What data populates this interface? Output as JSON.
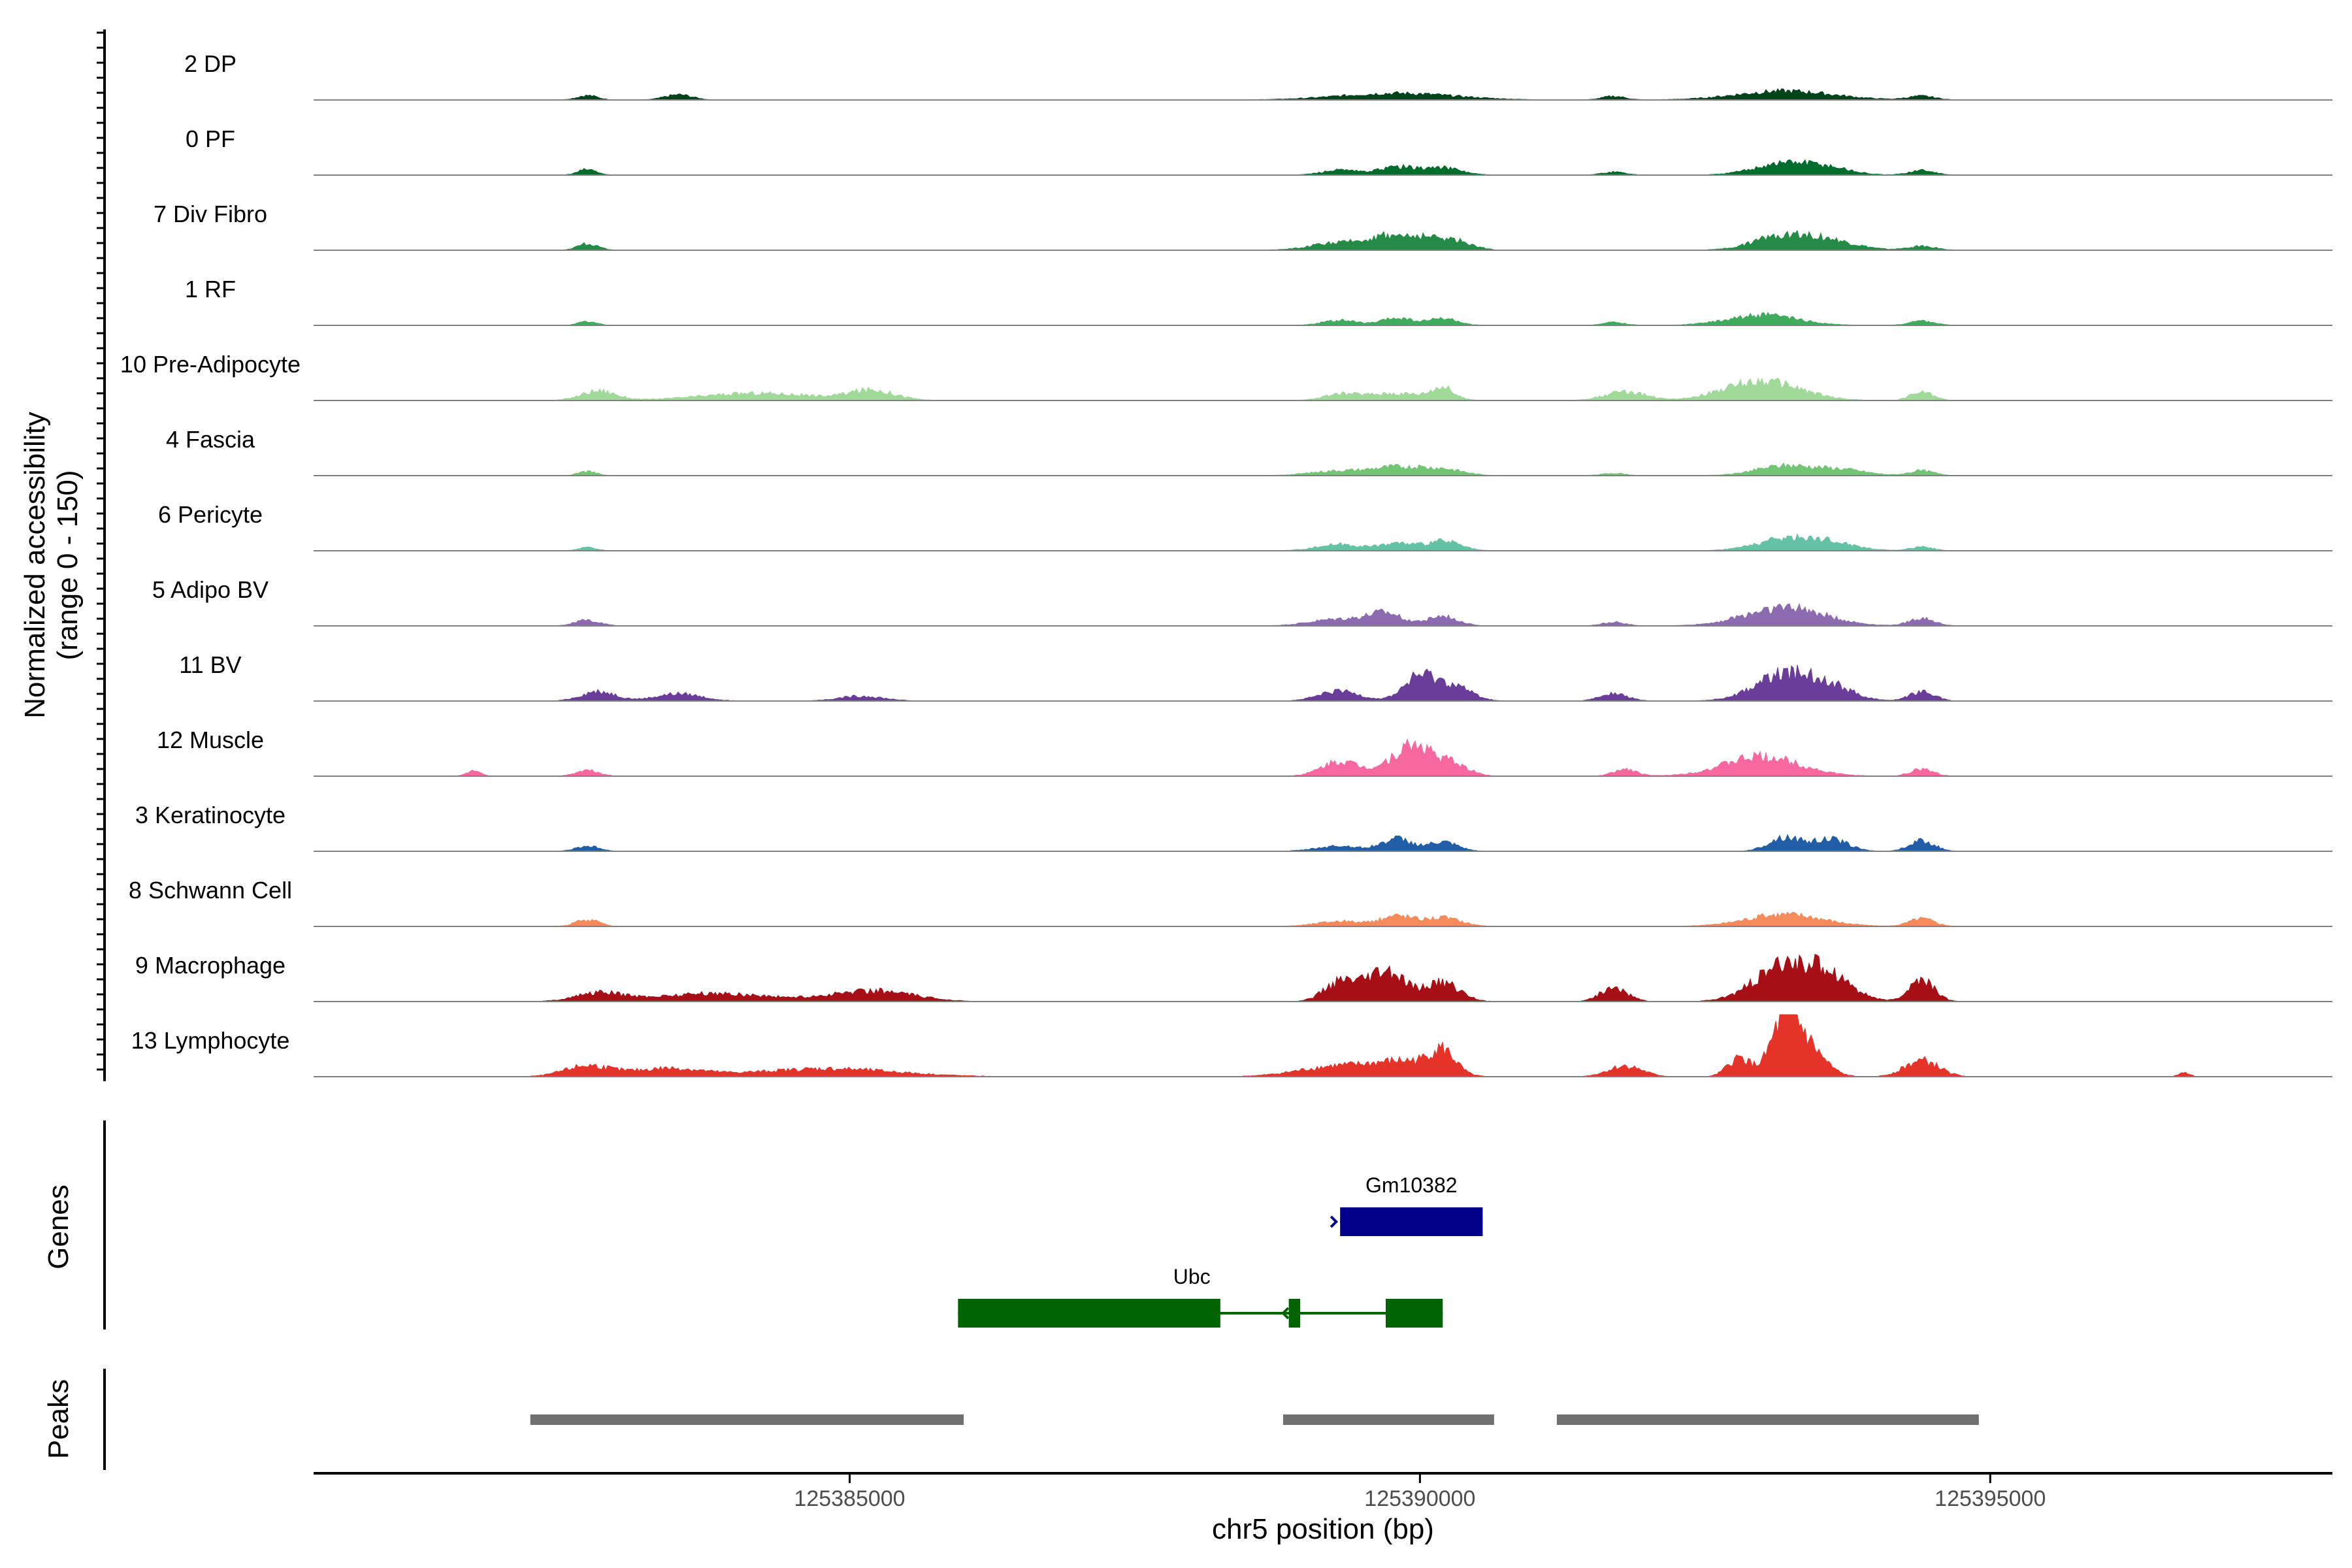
{
  "chart_data": {
    "type": "area",
    "kind": "genome-coverage-track-plot",
    "ylabel_lines": [
      "Normalized accessibility",
      "(range 0 - 150)"
    ],
    "y_range": [
      0,
      150
    ],
    "xlabel": "chr5 position (bp)",
    "x_range": [
      125380300,
      125398000
    ],
    "x_ticks": [
      125385000,
      125390000,
      125395000
    ],
    "x_tick_labels": [
      "125385000",
      "125390000",
      "125395000"
    ],
    "tracks": [
      {
        "name": "2 DP",
        "color": "#00441b",
        "scale": 0.55,
        "peaks": [
          [
            125382700,
            6,
            90
          ],
          [
            125383500,
            7,
            120
          ],
          [
            125389800,
            9,
            500
          ],
          [
            125391700,
            5,
            100
          ],
          [
            125393200,
            12,
            420
          ],
          [
            125394400,
            5,
            120
          ]
        ]
      },
      {
        "name": "0 PF",
        "color": "#006d2c",
        "scale": 0.6,
        "peaks": [
          [
            125382700,
            7,
            80
          ],
          [
            125389300,
            6,
            160
          ],
          [
            125389800,
            10,
            160
          ],
          [
            125390200,
            9,
            160
          ],
          [
            125391700,
            4,
            100
          ],
          [
            125393200,
            15,
            260
          ],
          [
            125393600,
            7,
            200
          ],
          [
            125394400,
            6,
            110
          ]
        ]
      },
      {
        "name": "7 Div Fibro",
        "color": "#238b45",
        "scale": 0.6,
        "peaks": [
          [
            125382700,
            8,
            90
          ],
          [
            125389300,
            9,
            250
          ],
          [
            125389700,
            14,
            160
          ],
          [
            125390000,
            13,
            150
          ],
          [
            125390300,
            12,
            150
          ],
          [
            125393200,
            18,
            260
          ],
          [
            125393600,
            9,
            250
          ],
          [
            125394400,
            5,
            120
          ]
        ]
      },
      {
        "name": "1 RF",
        "color": "#41ab5d",
        "scale": 0.55,
        "peaks": [
          [
            125382700,
            5,
            80
          ],
          [
            125389300,
            7,
            150
          ],
          [
            125389800,
            10,
            130
          ],
          [
            125390200,
            9,
            130
          ],
          [
            125391700,
            4,
            100
          ],
          [
            125393000,
            14,
            300
          ],
          [
            125394400,
            6,
            110
          ]
        ]
      },
      {
        "name": "10 Pre-Adipocyte",
        "color": "#a1d99b",
        "scale": 0.9,
        "peaks": [
          [
            125382800,
            8,
            150
          ],
          [
            125384200,
            6,
            500
          ],
          [
            125385200,
            8,
            200
          ],
          [
            125389300,
            4,
            150
          ],
          [
            125389800,
            6,
            300
          ],
          [
            125390200,
            9,
            90
          ],
          [
            125391800,
            7,
            180
          ],
          [
            125393000,
            16,
            330
          ],
          [
            125394400,
            7,
            100
          ]
        ]
      },
      {
        "name": "4 Fascia",
        "color": "#74c476",
        "scale": 0.6,
        "peaks": [
          [
            125382700,
            5,
            80
          ],
          [
            125389300,
            6,
            250
          ],
          [
            125389800,
            10,
            200
          ],
          [
            125390200,
            8,
            180
          ],
          [
            125391700,
            3,
            100
          ],
          [
            125393200,
            12,
            250
          ],
          [
            125393700,
            7,
            220
          ],
          [
            125394400,
            6,
            110
          ]
        ]
      },
      {
        "name": "6 Pericyte",
        "color": "#66c2a4",
        "scale": 0.6,
        "peaks": [
          [
            125382700,
            4,
            80
          ],
          [
            125389300,
            8,
            200
          ],
          [
            125389800,
            9,
            140
          ],
          [
            125390200,
            12,
            150
          ],
          [
            125393200,
            14,
            260
          ],
          [
            125393600,
            9,
            230
          ],
          [
            125394400,
            5,
            100
          ]
        ]
      },
      {
        "name": "5 Adipo BV",
        "color": "#8c6bb1",
        "scale": 0.7,
        "peaks": [
          [
            125382700,
            6,
            110
          ],
          [
            125389300,
            7,
            250
          ],
          [
            125389700,
            12,
            150
          ],
          [
            125390200,
            10,
            140
          ],
          [
            125391700,
            4,
            100
          ],
          [
            125393200,
            20,
            340
          ],
          [
            125394400,
            8,
            110
          ]
        ]
      },
      {
        "name": "11 BV",
        "color": "#6a3d9a",
        "scale": 0.9,
        "peaks": [
          [
            125382800,
            8,
            150
          ],
          [
            125383500,
            6,
            200
          ],
          [
            125385100,
            4,
            200
          ],
          [
            125389300,
            8,
            180
          ],
          [
            125390000,
            20,
            140
          ],
          [
            125390300,
            12,
            150
          ],
          [
            125391700,
            6,
            120
          ],
          [
            125393200,
            22,
            260
          ],
          [
            125393600,
            10,
            200
          ],
          [
            125394400,
            8,
            110
          ]
        ]
      },
      {
        "name": "12 Muscle",
        "color": "#f768a1",
        "scale": 0.9,
        "peaks": [
          [
            125381700,
            4,
            60
          ],
          [
            125382700,
            5,
            100
          ],
          [
            125389300,
            12,
            160
          ],
          [
            125389800,
            12,
            160
          ],
          [
            125390000,
            19,
            140
          ],
          [
            125390300,
            10,
            130
          ],
          [
            125391800,
            6,
            100
          ],
          [
            125393000,
            16,
            330
          ],
          [
            125394400,
            6,
            100
          ]
        ]
      },
      {
        "name": "3 Keratinocyte",
        "color": "#225ea8",
        "scale": 0.65,
        "peaks": [
          [
            125382700,
            6,
            100
          ],
          [
            125389300,
            6,
            200
          ],
          [
            125389800,
            14,
            130
          ],
          [
            125390200,
            10,
            130
          ],
          [
            125393200,
            16,
            140
          ],
          [
            125393600,
            14,
            150
          ],
          [
            125394400,
            12,
            110
          ]
        ]
      },
      {
        "name": "8 Schwann Cell",
        "color": "#f58b5a",
        "scale": 0.65,
        "peaks": [
          [
            125382700,
            8,
            100
          ],
          [
            125389300,
            6,
            200
          ],
          [
            125389800,
            12,
            140
          ],
          [
            125390200,
            10,
            160
          ],
          [
            125393200,
            14,
            330
          ],
          [
            125394400,
            9,
            110
          ]
        ]
      },
      {
        "name": "9 Macrophage",
        "color": "#a50f15",
        "scale": 1.0,
        "peaks": [
          [
            125382800,
            6,
            200
          ],
          [
            125383800,
            6,
            500
          ],
          [
            125385200,
            8,
            350
          ],
          [
            125389300,
            14,
            140
          ],
          [
            125389700,
            22,
            170
          ],
          [
            125390200,
            14,
            150
          ],
          [
            125391700,
            10,
            120
          ],
          [
            125393200,
            26,
            260
          ],
          [
            125393600,
            16,
            200
          ],
          [
            125394400,
            16,
            110
          ]
        ]
      },
      {
        "name": "13 Lymphocyte",
        "color": "#e6332a",
        "scale": 1.0,
        "peaks": [
          [
            125382700,
            8,
            200
          ],
          [
            125383400,
            6,
            300
          ],
          [
            125384800,
            6,
            600
          ],
          [
            125389300,
            8,
            350
          ],
          [
            125389900,
            10,
            250
          ],
          [
            125390200,
            16,
            110
          ],
          [
            125391800,
            8,
            150
          ],
          [
            125393200,
            40,
            120
          ],
          [
            125393400,
            20,
            150
          ],
          [
            125392800,
            14,
            100
          ],
          [
            125394400,
            12,
            150
          ],
          [
            125396700,
            3,
            50
          ]
        ]
      }
    ],
    "genes_label": "Genes",
    "genes": [
      {
        "name": "Gm10382",
        "color": "#00008b",
        "strand": "+",
        "start": 125389300,
        "end": 125390550,
        "exons": [
          [
            125389300,
            125390550
          ]
        ]
      },
      {
        "name": "Ubc",
        "color": "#006400",
        "strand": "-",
        "start": 125385950,
        "end": 125390200,
        "exons": [
          [
            125385950,
            125388250
          ],
          [
            125388850,
            125388950
          ],
          [
            125389700,
            125390200
          ]
        ]
      }
    ],
    "peaks_label": "Peaks",
    "peak_regions": [
      [
        125382200,
        125386000
      ],
      [
        125388800,
        125390650
      ],
      [
        125391200,
        125394900
      ]
    ],
    "peak_color": "#707070"
  }
}
